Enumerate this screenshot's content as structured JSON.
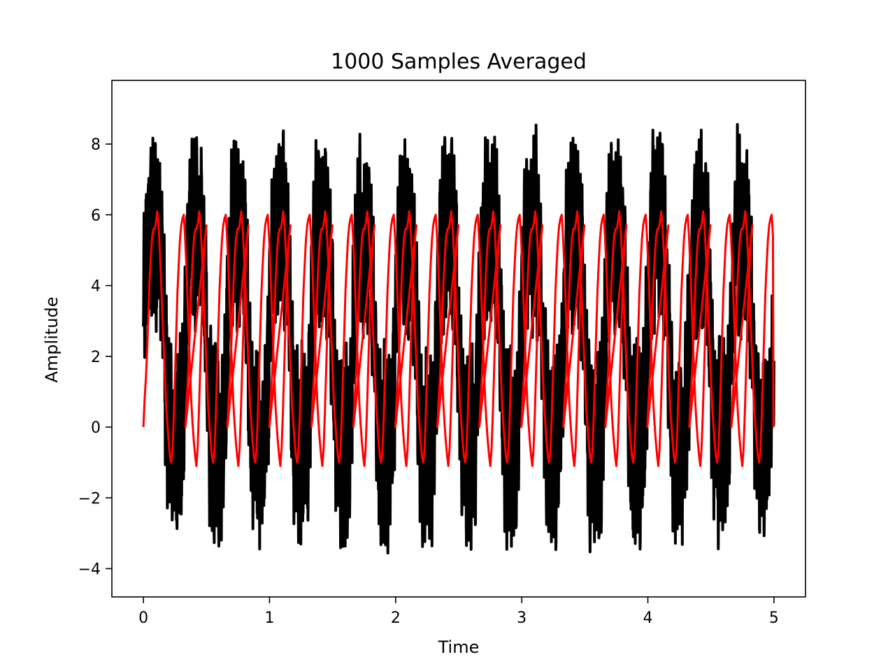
{
  "chart_data": {
    "type": "line",
    "title": "1000 Samples Averaged",
    "xlabel": "Time",
    "ylabel": "Amplitude",
    "xlim": [
      -0.25,
      5.25
    ],
    "ylim": [
      -4.8,
      9.8
    ],
    "xticks": [
      0,
      1,
      2,
      3,
      4,
      5
    ],
    "xtick_labels": [
      "0",
      "1",
      "2",
      "3",
      "4",
      "5"
    ],
    "yticks": [
      -4,
      -2,
      0,
      2,
      4,
      6,
      8
    ],
    "ytick_labels": [
      "−4",
      "−2",
      "0",
      "2",
      "4",
      "6",
      "8"
    ],
    "grid": false,
    "legend": "none",
    "signal_period": 0.333,
    "series": [
      {
        "color": "#000000",
        "description_of_shape": "noisy periodic signal",
        "x": [
          0,
          0.025,
          0.05,
          0.075,
          0.1,
          0.125,
          0.15,
          0.175,
          0.2,
          0.225,
          0.25,
          0.275,
          0.3,
          0.325,
          0.35,
          0.375,
          0.4,
          0.425,
          0.45,
          0.475,
          0.5
        ],
        "y": [
          4.5,
          5.8,
          7.5,
          8.5,
          9.2,
          8.0,
          6.5,
          5.5,
          3.0,
          0.5,
          -2.0,
          -3.9,
          -3.5,
          -1.5,
          2.0,
          5.0,
          7.0,
          8.8,
          9.2,
          7.5,
          5.0
        ],
        "y_range": [
          -4.1,
          9.2
        ]
      },
      {
        "color": "#ff0000",
        "x": [
          0,
          0.01,
          0.02,
          0.03,
          0.04,
          0.05,
          0.06,
          0.07,
          0.08,
          0.09,
          0.1,
          0.11,
          0.12,
          0.13,
          0.14,
          0.15,
          0.16,
          0.17,
          0.18,
          0.19,
          0.2,
          0.21,
          0.22,
          0.23,
          0.24,
          0.25,
          0.26,
          0.27,
          0.28,
          0.29,
          0.3,
          0.31,
          0.32,
          0.33,
          0.34,
          0.35,
          0.36,
          0.37,
          0.38,
          0.39,
          0.4,
          0.41,
          0.42,
          0.43,
          0.44,
          0.45,
          0.46,
          0.47,
          0.48,
          0.49,
          0.5
        ],
        "y": [
          0.0,
          0.8,
          1.4,
          2.2,
          3.2,
          4.2,
          4.9,
          5.4,
          5.6,
          5.6,
          5.8,
          6.1,
          5.7,
          5.0,
          4.2,
          3.2,
          2.4,
          1.5,
          0.6,
          0.1,
          -0.4,
          -0.8,
          -1.0,
          -0.7,
          0.2,
          1.4,
          2.6,
          3.8,
          4.6,
          5.3,
          5.7,
          5.9,
          6.0,
          5.4,
          4.6,
          3.6,
          2.6,
          1.6,
          0.7,
          0.1,
          -0.4,
          -0.8,
          -1.1,
          -0.6,
          0.4,
          1.6,
          2.8,
          3.9,
          4.8,
          5.4,
          5.7
        ],
        "y_range": [
          -1.1,
          6.1
        ]
      }
    ]
  }
}
